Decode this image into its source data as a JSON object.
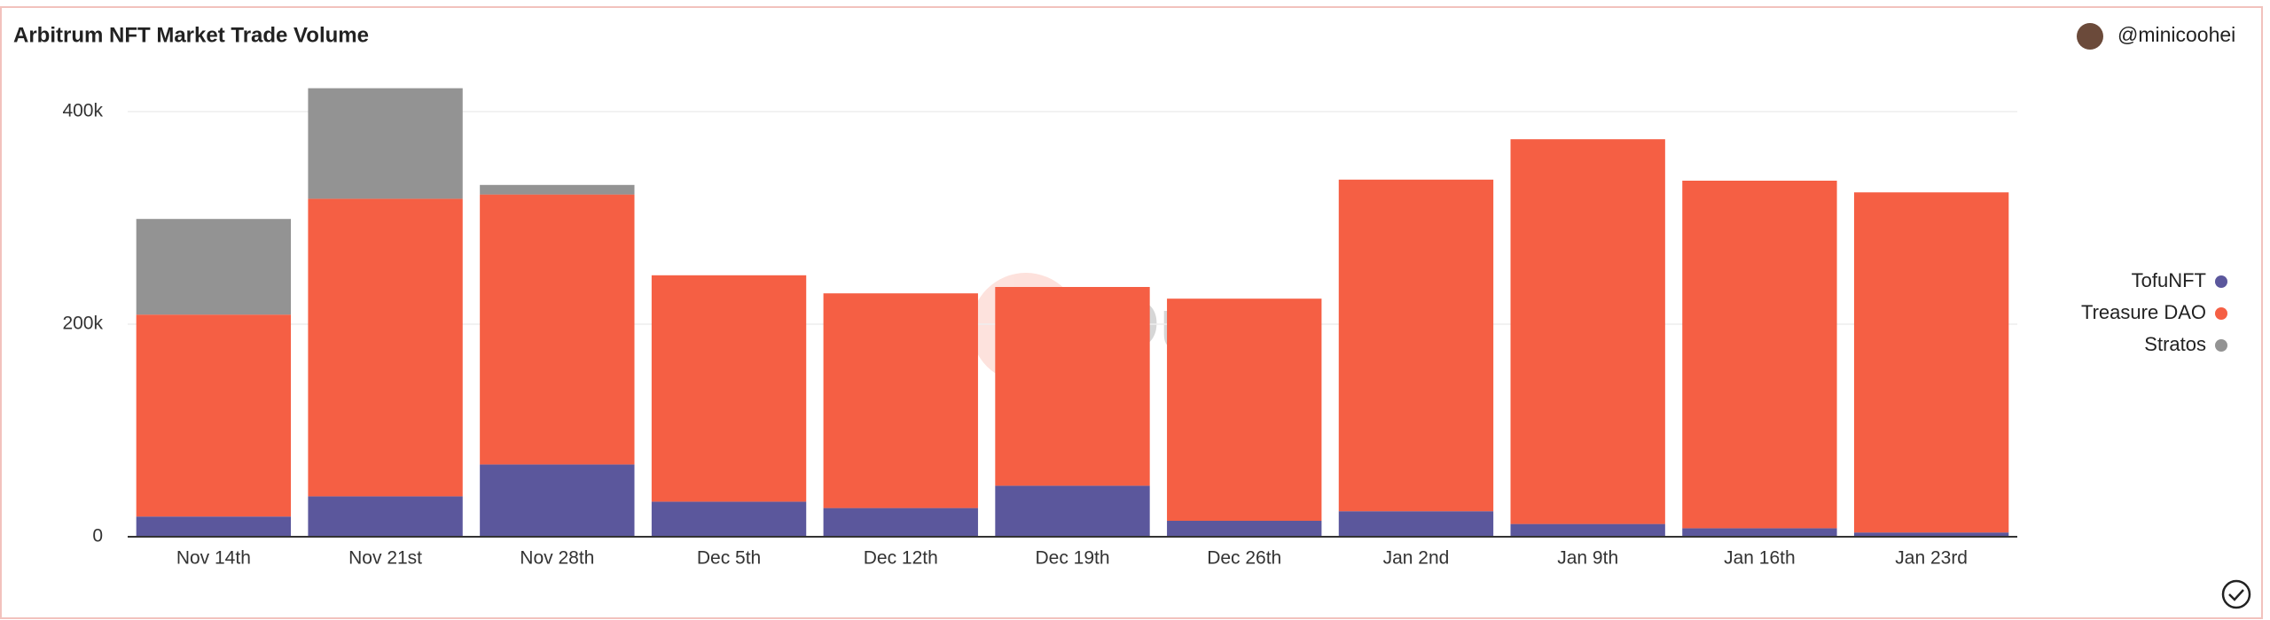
{
  "chart_data": {
    "type": "stacked_bar",
    "title": "Arbitrum NFT Market Trade Volume",
    "author": "@minicoohei",
    "watermark": "Dune",
    "categories": [
      "Nov 14th",
      "Nov 21st",
      "Nov 28th",
      "Dec 5th",
      "Dec 12th",
      "Dec 19th",
      "Dec 26th",
      "Jan 2nd",
      "Jan 9th",
      "Jan 16th",
      "Jan 23rd"
    ],
    "series": [
      {
        "name": "TofuNFT",
        "color": "#5b579c",
        "values": [
          19000,
          38000,
          68000,
          33000,
          27000,
          48000,
          15000,
          24000,
          12000,
          8000,
          4000
        ]
      },
      {
        "name": "Treasure DAO",
        "color": "#f55f44",
        "values": [
          190000,
          280000,
          254000,
          213000,
          202000,
          187000,
          209000,
          312000,
          362000,
          327000,
          320000
        ]
      },
      {
        "name": "Stratos",
        "color": "#939393",
        "values": [
          90000,
          104000,
          9000,
          0,
          0,
          0,
          0,
          0,
          0,
          0,
          0
        ]
      }
    ],
    "ylim": [
      0,
      440000
    ],
    "yticks": [
      0,
      {
        "value": 200000,
        "label": "200k"
      },
      {
        "value": 400000,
        "label": "400k"
      }
    ],
    "grid": true,
    "legend": "right"
  }
}
